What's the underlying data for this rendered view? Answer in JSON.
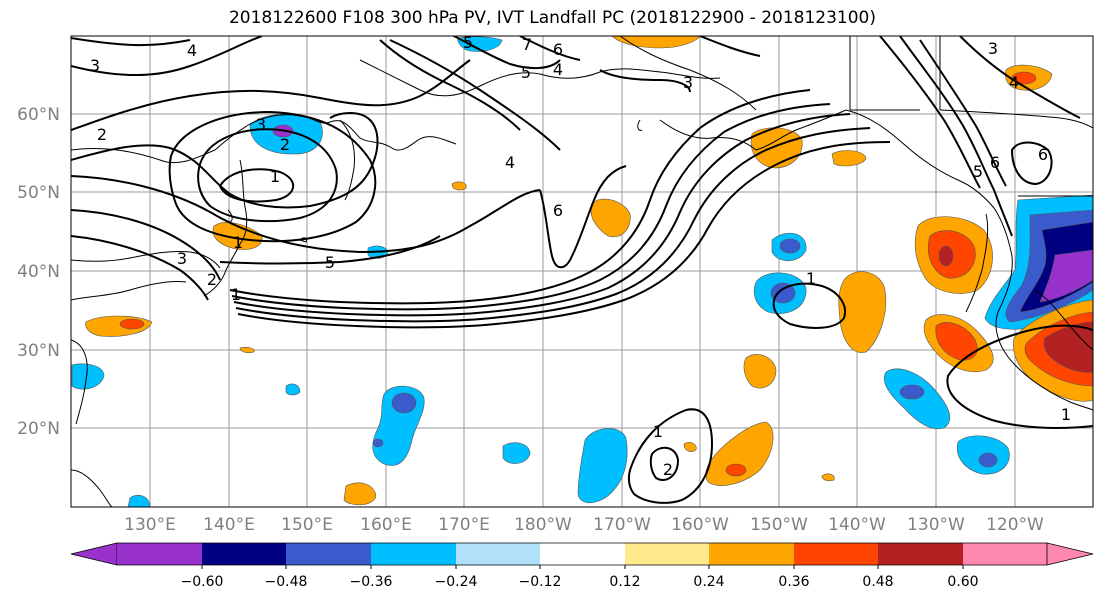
{
  "title": "2018122600 F108 300 hPa PV, IVT Landfall PC (2018122900 - 2018123100)",
  "latitude_labels": [
    "60°N",
    "50°N",
    "40°N",
    "30°N",
    "20°N"
  ],
  "longitude_labels": [
    "130°E",
    "140°E",
    "150°E",
    "160°E",
    "170°E",
    "180°W",
    "170°W",
    "160°W",
    "150°W",
    "140°W",
    "130°W",
    "120°W"
  ],
  "colorbar": {
    "colors": [
      "#9932CC",
      "#000080",
      "#3A5BCC",
      "#00BFFF",
      "#B0E0FA",
      "#FFFFFF",
      "#FFE98A",
      "#FFA500",
      "#FF4500",
      "#B22222",
      "#FF88B0"
    ],
    "tick_labels": [
      "−0.60",
      "−0.48",
      "−0.36",
      "−0.24",
      "−0.12",
      "0.12",
      "0.24",
      "0.36",
      "0.48",
      "0.60"
    ]
  },
  "contour_labels": [
    "4",
    "3",
    "2",
    "3",
    "2",
    "1",
    "3",
    "2",
    "1",
    "5",
    "4",
    "5",
    "6",
    "7",
    "6",
    "5",
    "4",
    "3",
    "6",
    "1",
    "1",
    "2",
    "1",
    "3",
    "4",
    "5",
    "6",
    "1"
  ],
  "colors": {
    "land_outline": "#000000",
    "grid": "#9a9a9a",
    "contour": "#000000",
    "axis_label": "#808080"
  }
}
